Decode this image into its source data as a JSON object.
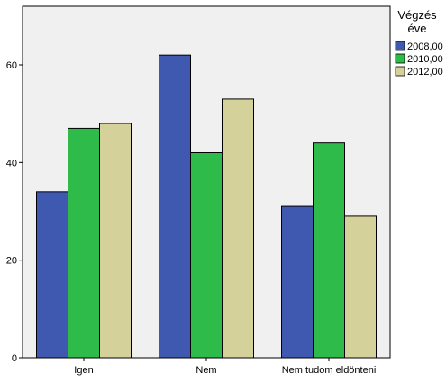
{
  "chart_data": {
    "type": "bar",
    "categories": [
      "Igen",
      "Nem",
      "Nem tudom eldönteni"
    ],
    "series": [
      {
        "name": "2008,00",
        "color": "#3f58b0",
        "values": [
          34,
          62,
          31
        ]
      },
      {
        "name": "2010,00",
        "color": "#2fbb4a",
        "values": [
          47,
          42,
          44
        ]
      },
      {
        "name": "2012,00",
        "color": "#d5d19a",
        "values": [
          48,
          53,
          29
        ]
      }
    ],
    "legend_title": [
      "Végzés",
      "éve"
    ],
    "ylim": [
      0,
      72
    ],
    "yticks": [
      0,
      20,
      40,
      60
    ],
    "legend_position": "right",
    "plot_background": "#f0f0f0"
  }
}
